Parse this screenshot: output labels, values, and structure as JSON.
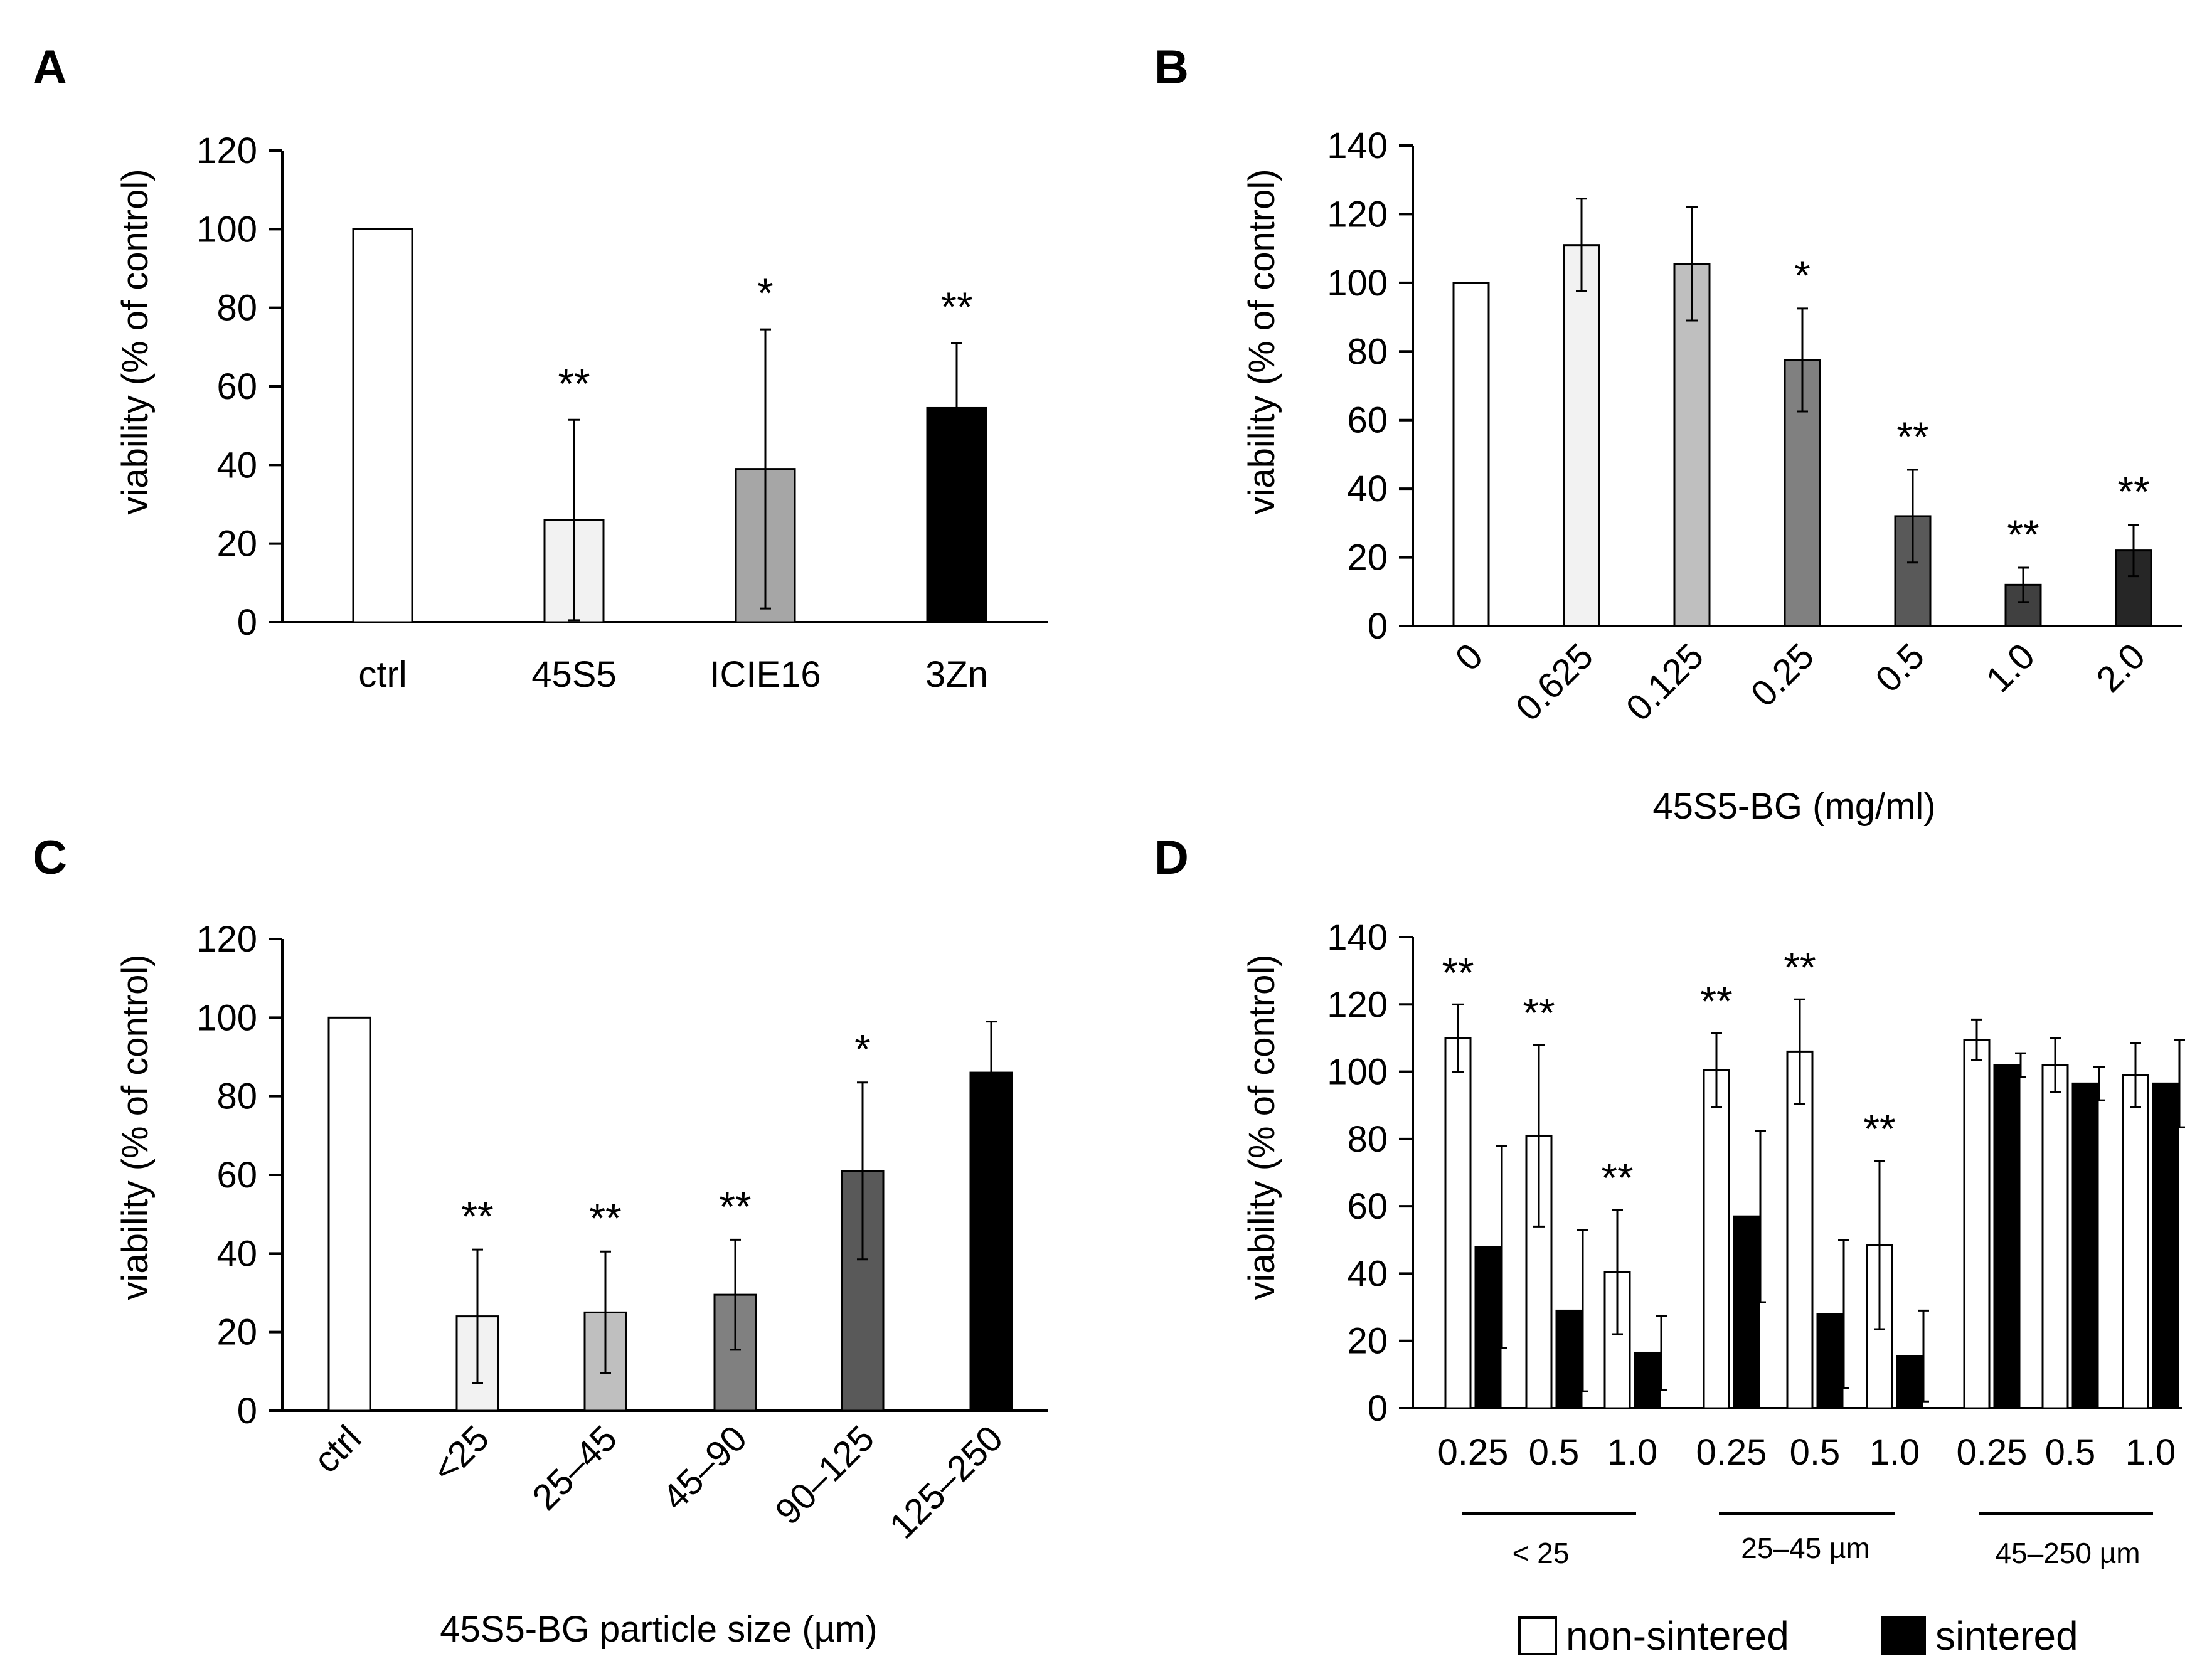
{
  "chart_data": [
    {
      "panel": "A",
      "type": "bar",
      "ylabel": "viability (% of control)",
      "xlabel": "",
      "ylim": [
        0,
        120
      ],
      "yticks": [
        0,
        20,
        40,
        60,
        80,
        100,
        120
      ],
      "categories": [
        "ctrl",
        "45S5",
        "ICIE16",
        "3Zn"
      ],
      "values": [
        100,
        26,
        39,
        54.5
      ],
      "errors": [
        0,
        25.5,
        35.5,
        16.5
      ],
      "significance": [
        "",
        "**",
        "*",
        "**"
      ],
      "colors": [
        "#ffffff",
        "#f2f2f2",
        "#a6a6a6",
        "#000000"
      ]
    },
    {
      "panel": "B",
      "type": "bar",
      "ylabel": "viability (% of control)",
      "xlabel": "45S5-BG (mg/ml)",
      "ylim": [
        0,
        140
      ],
      "yticks": [
        0,
        20,
        40,
        60,
        80,
        100,
        120,
        140
      ],
      "categories": [
        "0",
        "0.625",
        "0.125",
        "0.25",
        "0.5",
        "1.0",
        "2.0"
      ],
      "values": [
        100,
        111,
        105.5,
        77.5,
        32,
        12,
        22
      ],
      "errors": [
        0,
        13.5,
        16.5,
        15,
        13.5,
        5,
        7.5
      ],
      "significance": [
        "",
        "",
        "",
        "*",
        "**",
        "**",
        "**"
      ],
      "colors": [
        "#ffffff",
        "#f2f2f2",
        "#bfbfbf",
        "#808080",
        "#595959",
        "#404040",
        "#262626"
      ]
    },
    {
      "panel": "C",
      "type": "bar",
      "ylabel": "viability (% of control)",
      "xlabel": "45S5-BG particle size (µm)",
      "ylim": [
        0,
        120
      ],
      "yticks": [
        0,
        20,
        40,
        60,
        80,
        100,
        120
      ],
      "categories": [
        "ctrl",
        "<25",
        "25–45",
        "45–90",
        "90–125",
        "125–250"
      ],
      "values": [
        100,
        24,
        25,
        29.5,
        61,
        86
      ],
      "errors": [
        0,
        17,
        15.5,
        14,
        22.5,
        13
      ],
      "significance": [
        "",
        "**",
        "**",
        "**",
        "*",
        ""
      ],
      "colors": [
        "#ffffff",
        "#f2f2f2",
        "#bfbfbf",
        "#808080",
        "#595959",
        "#000000"
      ]
    },
    {
      "panel": "D",
      "type": "bar",
      "ylabel": "viability (% of control)",
      "xlabel": "",
      "ylim": [
        0,
        140
      ],
      "yticks": [
        0,
        20,
        40,
        60,
        80,
        100,
        120,
        140
      ],
      "categories": [
        "0.25",
        "0.5",
        "1.0",
        "0.25",
        "0.5",
        "1.0",
        "0.25",
        "0.5",
        "1.0"
      ],
      "groups": [
        "< 25",
        "25–45 µm",
        "45–250 µm"
      ],
      "series": [
        {
          "name": "non-sintered",
          "color": "#ffffff",
          "values": [
            110,
            81,
            40.5,
            100.5,
            106,
            48.5,
            109.5,
            102,
            99
          ],
          "errors": [
            10,
            27,
            18.5,
            11,
            15.5,
            25,
            6,
            8,
            9.5
          ]
        },
        {
          "name": "sintered",
          "color": "#000000",
          "values": [
            48,
            29,
            16.5,
            57,
            28,
            15.5,
            102,
            96.5,
            96.5
          ],
          "errors": [
            30,
            24,
            11,
            25.5,
            22,
            13.5,
            3.5,
            5,
            13
          ]
        }
      ],
      "significance": [
        "**",
        "**",
        "**",
        "**",
        "**",
        "**",
        "",
        "",
        ""
      ],
      "legend": "bottom"
    }
  ]
}
